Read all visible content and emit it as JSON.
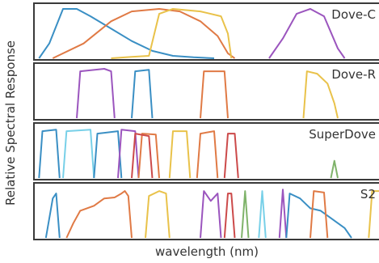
{
  "chart_data": {
    "type": "line",
    "title": "",
    "xlabel": "wavelength (nm)",
    "ylabel": "Relative Spectral Response",
    "x_range": [
      0,
      100
    ],
    "y_range": [
      0,
      1
    ],
    "grid": false,
    "colors": {
      "blue": "#3a8fc4",
      "orange": "#e07a45",
      "yellow": "#e9c24a",
      "purple": "#9b55be",
      "green": "#7fb36a",
      "red": "#cc4a4a",
      "cyan": "#78d0e8",
      "frame": "#3a3a3a"
    },
    "panels": [
      {
        "label": "Dove-C",
        "series": [
          {
            "color": "blue",
            "points": [
              [
                1,
                0
              ],
              [
                4,
                0.3
              ],
              [
                8,
                1
              ],
              [
                12,
                1
              ],
              [
                16,
                0.85
              ],
              [
                22,
                0.6
              ],
              [
                28,
                0.35
              ],
              [
                34,
                0.15
              ],
              [
                40,
                0.05
              ],
              [
                46,
                0.02
              ],
              [
                52,
                0
              ]
            ]
          },
          {
            "color": "orange",
            "points": [
              [
                5,
                0
              ],
              [
                14,
                0.3
              ],
              [
                22,
                0.75
              ],
              [
                28,
                0.95
              ],
              [
                36,
                1
              ],
              [
                42,
                0.95
              ],
              [
                48,
                0.75
              ],
              [
                53,
                0.45
              ],
              [
                56,
                0.1
              ],
              [
                58,
                0
              ]
            ]
          },
          {
            "color": "yellow",
            "points": [
              [
                22,
                0
              ],
              [
                28,
                0.03
              ],
              [
                33,
                0.05
              ],
              [
                36,
                0.9
              ],
              [
                40,
                1
              ],
              [
                48,
                0.95
              ],
              [
                54,
                0.85
              ],
              [
                56,
                0.5
              ],
              [
                57,
                0
              ]
            ]
          },
          {
            "color": "purple",
            "points": [
              [
                68,
                0
              ],
              [
                72,
                0.4
              ],
              [
                76,
                0.9
              ],
              [
                80,
                1
              ],
              [
                84,
                0.85
              ],
              [
                88,
                0.2
              ],
              [
                90,
                0
              ]
            ]
          }
        ]
      },
      {
        "label": "Dove-R",
        "series": [
          {
            "color": "purple",
            "points": [
              [
                12,
                0
              ],
              [
                13,
                0.95
              ],
              [
                20,
                1
              ],
              [
                22,
                0.95
              ],
              [
                23,
                0
              ]
            ]
          },
          {
            "color": "blue",
            "points": [
              [
                28,
                0
              ],
              [
                29,
                0.95
              ],
              [
                33,
                0.98
              ],
              [
                34,
                0
              ]
            ]
          },
          {
            "color": "orange",
            "points": [
              [
                48,
                0
              ],
              [
                49,
                0.95
              ],
              [
                55,
                0.95
              ],
              [
                56,
                0
              ]
            ]
          },
          {
            "color": "yellow",
            "points": [
              [
                78,
                0
              ],
              [
                79,
                0.95
              ],
              [
                82,
                0.9
              ],
              [
                85,
                0.7
              ],
              [
                87,
                0.3
              ],
              [
                88,
                0
              ]
            ]
          }
        ]
      },
      {
        "label": "SuperDove",
        "series": [
          {
            "color": "blue",
            "points": [
              [
                1,
                0
              ],
              [
                2,
                0.95
              ],
              [
                6,
                0.98
              ],
              [
                7,
                0
              ]
            ]
          },
          {
            "color": "cyan",
            "points": [
              [
                8,
                0
              ],
              [
                9,
                0.95
              ],
              [
                16,
                0.98
              ],
              [
                17,
                0
              ]
            ]
          },
          {
            "color": "blue",
            "points": [
              [
                17,
                0
              ],
              [
                18,
                0.9
              ],
              [
                24,
                0.95
              ],
              [
                25,
                0
              ]
            ]
          },
          {
            "color": "purple",
            "points": [
              [
                24,
                0
              ],
              [
                25,
                0.98
              ],
              [
                29,
                0.95
              ],
              [
                30,
                0
              ]
            ]
          },
          {
            "color": "orange",
            "points": [
              [
                30,
                0
              ],
              [
                31,
                0.9
              ],
              [
                35,
                0.88
              ],
              [
                36,
                0
              ]
            ]
          },
          {
            "color": "red",
            "points": [
              [
                28,
                0
              ],
              [
                29,
                0.9
              ],
              [
                33,
                0.85
              ],
              [
                34,
                0
              ]
            ]
          },
          {
            "color": "yellow",
            "points": [
              [
                39,
                0
              ],
              [
                40,
                0.95
              ],
              [
                44,
                0.95
              ],
              [
                45,
                0
              ]
            ]
          },
          {
            "color": "orange",
            "points": [
              [
                47,
                0
              ],
              [
                48,
                0.9
              ],
              [
                52,
                0.95
              ],
              [
                53,
                0
              ]
            ]
          },
          {
            "color": "red",
            "points": [
              [
                55,
                0
              ],
              [
                56,
                0.9
              ],
              [
                58,
                0.9
              ],
              [
                59,
                0
              ]
            ]
          },
          {
            "color": "green",
            "points": [
              [
                86,
                0
              ],
              [
                87,
                0.35
              ],
              [
                88,
                0
              ]
            ]
          }
        ]
      },
      {
        "label": "S2",
        "series": [
          {
            "color": "blue",
            "points": [
              [
                3,
                0
              ],
              [
                5,
                0.8
              ],
              [
                6,
                0.9
              ],
              [
                7,
                0
              ]
            ]
          },
          {
            "color": "orange",
            "points": [
              [
                9,
                0
              ],
              [
                11,
                0.3
              ],
              [
                13,
                0.55
              ],
              [
                17,
                0.65
              ],
              [
                20,
                0.8
              ],
              [
                23,
                0.82
              ],
              [
                25,
                0.9
              ],
              [
                26,
                0.95
              ],
              [
                27,
                0.85
              ],
              [
                28,
                0
              ]
            ]
          },
          {
            "color": "yellow",
            "points": [
              [
                32,
                0
              ],
              [
                33,
                0.85
              ],
              [
                36,
                0.95
              ],
              [
                38,
                0.9
              ],
              [
                39,
                0
              ]
            ]
          },
          {
            "color": "purple",
            "points": [
              [
                48,
                0
              ],
              [
                49,
                0.95
              ],
              [
                51,
                0.75
              ],
              [
                53,
                0.9
              ],
              [
                54,
                0
              ]
            ]
          },
          {
            "color": "red",
            "points": [
              [
                55,
                0
              ],
              [
                56,
                0.9
              ],
              [
                57,
                0.9
              ],
              [
                58,
                0
              ]
            ]
          },
          {
            "color": "green",
            "points": [
              [
                60,
                0
              ],
              [
                61,
                0.95
              ],
              [
                62,
                0
              ]
            ]
          },
          {
            "color": "cyan",
            "points": [
              [
                65,
                0
              ],
              [
                66,
                0.95
              ],
              [
                67,
                0
              ]
            ]
          },
          {
            "color": "purple",
            "points": [
              [
                71,
                0
              ],
              [
                72,
                0.98
              ],
              [
                73,
                0
              ]
            ]
          },
          {
            "color": "blue",
            "points": [
              [
                73,
                0
              ],
              [
                74,
                0.9
              ],
              [
                77,
                0.8
              ],
              [
                80,
                0.6
              ],
              [
                83,
                0.55
              ],
              [
                86,
                0.4
              ],
              [
                88,
                0.3
              ],
              [
                90,
                0.2
              ],
              [
                92,
                0
              ]
            ]
          },
          {
            "color": "orange",
            "points": [
              [
                80,
                0
              ],
              [
                81,
                0.95
              ],
              [
                84,
                0.92
              ],
              [
                85,
                0
              ]
            ]
          },
          {
            "color": "yellow",
            "points": [
              [
                97,
                0
              ],
              [
                98,
                0.95
              ],
              [
                100,
                0.95
              ]
            ]
          }
        ]
      }
    ]
  }
}
